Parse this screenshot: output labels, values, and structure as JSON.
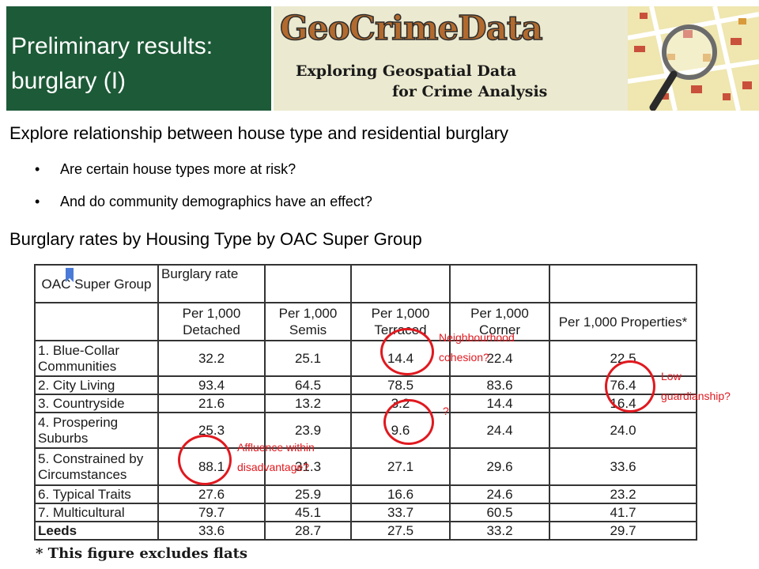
{
  "title": {
    "line1": "Preliminary results:",
    "line2": "burglary (I)"
  },
  "banner": {
    "brand": "GeoCrimeData",
    "subtitle_line1": "Exploring Geospatial Data",
    "subtitle_line2": "for Crime Analysis"
  },
  "intro": {
    "heading": "Explore relationship between house type and residential burglary",
    "bullets": [
      "Are certain house types more at risk?",
      "And do community demographics have an effect?"
    ],
    "table_heading": "Burglary rates by Housing Type by OAC Super Group"
  },
  "table": {
    "corner_label": "OAC Super Group",
    "group_label": "Burglary rate",
    "columns": [
      "Per 1,000 Detached",
      "Per 1,000 Semis",
      "Per 1,000 Terraced",
      "Per 1,000 Corner",
      "Per 1,000 Properties*"
    ],
    "rows": [
      {
        "label": "1. Blue-Collar Communities",
        "values": [
          "32.2",
          "25.1",
          "14.4",
          "22.4",
          "22.5"
        ]
      },
      {
        "label": "2. City Living",
        "values": [
          "93.4",
          "64.5",
          "78.5",
          "83.6",
          "76.4"
        ]
      },
      {
        "label": "3. Countryside",
        "values": [
          "21.6",
          "13.2",
          "3.2",
          "14.4",
          "16.4"
        ]
      },
      {
        "label": "4. Prospering Suburbs",
        "values": [
          "25.3",
          "23.9",
          "9.6",
          "24.4",
          "24.0"
        ]
      },
      {
        "label": "5. Constrained by Circumstances",
        "values": [
          "88.1",
          "31.3",
          "27.1",
          "29.6",
          "33.6"
        ]
      },
      {
        "label": "6. Typical Traits",
        "values": [
          "27.6",
          "25.9",
          "16.6",
          "24.6",
          "23.2"
        ]
      },
      {
        "label": "7. Multicultural",
        "values": [
          "79.7",
          "45.1",
          "33.7",
          "60.5",
          "41.7"
        ]
      },
      {
        "label": "Leeds",
        "values": [
          "33.6",
          "28.7",
          "27.5",
          "33.2",
          "29.7"
        ]
      }
    ],
    "footnote": "* This figure excludes flats"
  },
  "annotations": {
    "neighbourhood": [
      "Neighbourhood",
      "cohesion?"
    ],
    "question": "?",
    "guardianship": [
      "Low",
      "guardianship?"
    ],
    "affluence": [
      "Affluence within",
      "disadvantage?"
    ]
  },
  "colors": {
    "title_bg": "#1d5a37",
    "annotation": "#e0191f",
    "banner_bg": "#ebe9cf"
  }
}
